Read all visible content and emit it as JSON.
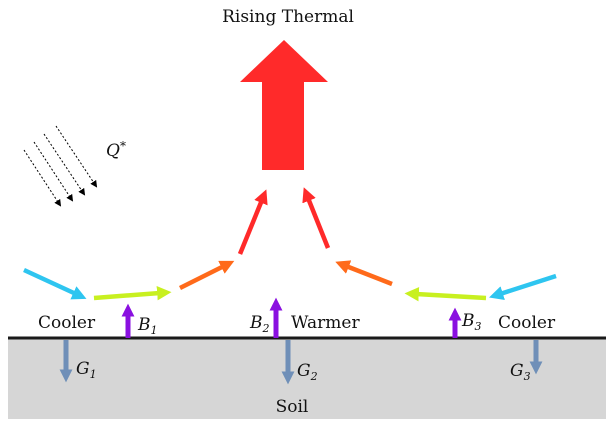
{
  "title": "Rising Thermal",
  "radiation": {
    "symbol": "Q",
    "superscript": "*"
  },
  "surface_labels": {
    "left": "Cooler",
    "center": "Warmer",
    "right": "Cooler"
  },
  "ground_label": "Soil",
  "B": [
    {
      "letter": "B",
      "sub": "1"
    },
    {
      "letter": "B",
      "sub": "2"
    },
    {
      "letter": "B",
      "sub": "3"
    }
  ],
  "G": [
    {
      "letter": "G",
      "sub": "1"
    },
    {
      "letter": "G",
      "sub": "2"
    },
    {
      "letter": "G",
      "sub": "3"
    }
  ],
  "colors": {
    "thermal": "#ff2a2a",
    "cool_air": "#2ec5f0",
    "low_flow": "#c8f020",
    "mid_flow": "#ff6a1a",
    "upflow": "#ff2a2a",
    "buoyancy": "#8a10e0",
    "ground_flux": "#6f8fb8",
    "soil": "#d6d6d6",
    "surface_line": "#1a1a1a",
    "radiation": "#000000"
  }
}
